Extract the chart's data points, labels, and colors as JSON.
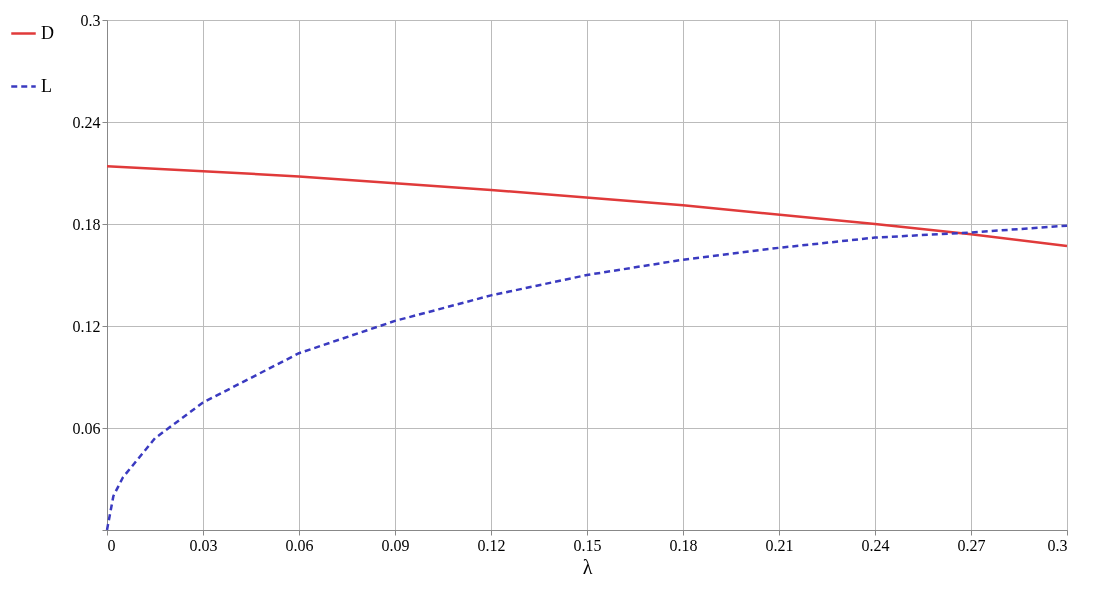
{
  "chart_data": {
    "type": "line",
    "xlabel": "λ",
    "xlim": [
      0,
      0.3
    ],
    "xticks": [
      0,
      0.03,
      0.06,
      0.09,
      0.12,
      0.15,
      0.18,
      0.21,
      0.24,
      0.27,
      0.3
    ],
    "ylim": [
      0,
      0.3
    ],
    "yticks": [
      {
        "value": 0,
        "label": null
      },
      0.06,
      0.12,
      0.18,
      0.24,
      0.3
    ],
    "grid": true,
    "legend": "left",
    "series": [
      {
        "name": "D",
        "color": "#e03a3a",
        "line_style": "solid",
        "x": [
          0,
          0.06,
          0.12,
          0.18,
          0.24,
          0.27,
          0.3
        ],
        "values": [
          0.214,
          0.208,
          0.2,
          0.191,
          0.18,
          0.174,
          0.167
        ]
      },
      {
        "name": "L",
        "color": "#3a3ac0",
        "line_style": "dashed",
        "x": [
          0,
          0.002,
          0.005,
          0.015,
          0.03,
          0.06,
          0.09,
          0.12,
          0.15,
          0.18,
          0.21,
          0.24,
          0.27,
          0.3
        ],
        "values": [
          0,
          0.02,
          0.031,
          0.054,
          0.075,
          0.104,
          0.123,
          0.138,
          0.15,
          0.159,
          0.166,
          0.172,
          0.175,
          0.179
        ]
      }
    ]
  }
}
